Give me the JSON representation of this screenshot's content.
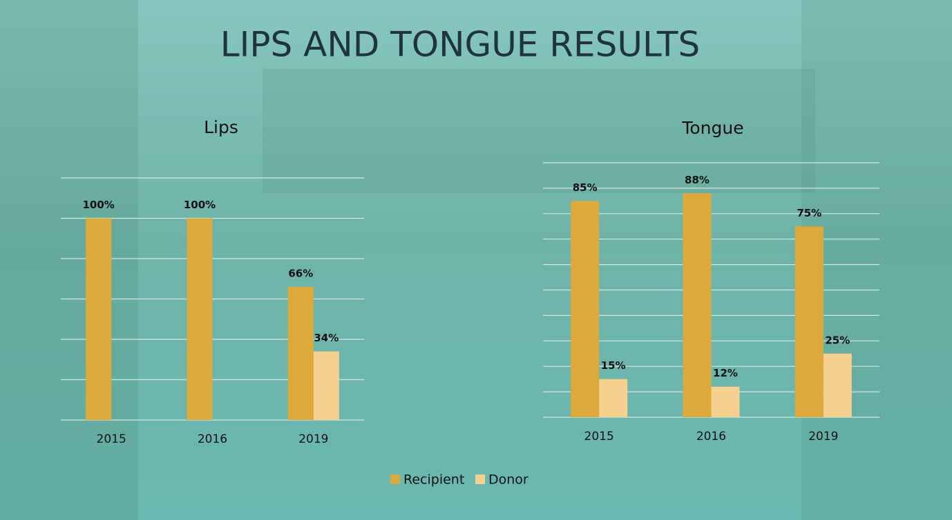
{
  "title": "LIPS AND TONGUE RESULTS",
  "chart_data": [
    {
      "type": "bar",
      "title": "Lips",
      "categories": [
        "2015",
        "2016",
        "2019"
      ],
      "series": [
        {
          "name": "Recipient",
          "color": "#dca93a",
          "values": [
            100,
            100,
            66
          ],
          "value_labels": [
            "100%",
            "100%",
            "66%"
          ]
        },
        {
          "name": "Donor",
          "color": "#f5d08f",
          "values": [
            null,
            null,
            34
          ],
          "value_labels": [
            null,
            null,
            "34%"
          ]
        }
      ],
      "ylim": [
        0,
        120
      ],
      "yticks": [
        0,
        20,
        40,
        60,
        80,
        100,
        120
      ],
      "grid": true
    },
    {
      "type": "bar",
      "title": "Tongue",
      "categories": [
        "2015",
        "2016",
        "2019"
      ],
      "series": [
        {
          "color": "#dca93a",
          "values": [
            85,
            88,
            75
          ],
          "value_labels": [
            "85%",
            "88%",
            "75%"
          ]
        },
        {
          "color": "#f5d08f",
          "values": [
            15,
            12,
            25
          ],
          "value_labels": [
            "15%",
            "12%",
            "25%"
          ]
        }
      ],
      "ylim": [
        0,
        100
      ],
      "yticks": [
        0,
        10,
        20,
        30,
        40,
        50,
        60,
        70,
        80,
        90,
        100
      ],
      "grid": true
    }
  ]
}
